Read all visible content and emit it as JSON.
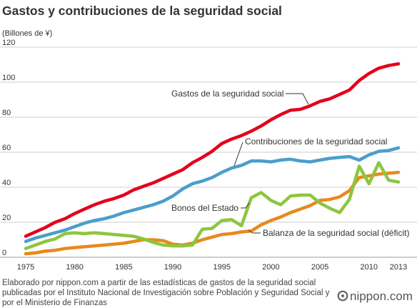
{
  "chart_data": {
    "type": "line",
    "title": "Gastos y contribuciones de la seguridad social",
    "ylabel": "(Billones de ¥)",
    "xlim": [
      1975,
      2013
    ],
    "ylim": [
      0,
      120
    ],
    "xticks": [
      1975,
      1980,
      1985,
      1990,
      1995,
      2000,
      2005,
      2010,
      2013
    ],
    "yticks": [
      0,
      20,
      40,
      60,
      80,
      100,
      120
    ],
    "grid": true,
    "legend": "inline",
    "x": [
      1975,
      1976,
      1977,
      1978,
      1979,
      1980,
      1981,
      1982,
      1983,
      1984,
      1985,
      1986,
      1987,
      1988,
      1989,
      1990,
      1991,
      1992,
      1993,
      1994,
      1995,
      1996,
      1997,
      1998,
      1999,
      2000,
      2001,
      2002,
      2003,
      2004,
      2005,
      2006,
      2007,
      2008,
      2009,
      2010,
      2011,
      2012,
      2013
    ],
    "series": [
      {
        "name": "Gastos de la seguridad social",
        "color": "#e3001b",
        "values": [
          12,
          14.5,
          17,
          20,
          22,
          25,
          27.5,
          30,
          32,
          33.5,
          35.5,
          38.5,
          40.5,
          42.5,
          45,
          47.5,
          50,
          54,
          57,
          60.5,
          65,
          67.5,
          69.5,
          72,
          75,
          78.5,
          81.5,
          84,
          84.5,
          86.5,
          89,
          90.5,
          93,
          95.5,
          101,
          105,
          108,
          109.5,
          110.5
        ]
      },
      {
        "name": "Contribuciones de la seguridad social",
        "color": "#4a9ecb",
        "values": [
          9,
          11,
          12.5,
          14,
          15.5,
          17.5,
          19.5,
          21,
          22,
          23.5,
          25.5,
          27,
          28.5,
          30,
          32,
          35,
          39,
          42,
          43.5,
          45.5,
          48.5,
          51,
          52.5,
          55,
          55,
          54.5,
          55.5,
          56,
          55,
          54.5,
          55.5,
          56.5,
          57,
          57.5,
          55.5,
          58.5,
          60.5,
          61,
          62.5
        ]
      },
      {
        "name": "Bonos del Estado",
        "color": "#8dc63f",
        "values": [
          5,
          7,
          9,
          10.5,
          13.5,
          14,
          13.5,
          14,
          13.5,
          13,
          12.5,
          12,
          10.5,
          8.5,
          7,
          6.5,
          6.5,
          7,
          16,
          16.5,
          21,
          21.5,
          18,
          34,
          37,
          32.5,
          30,
          35,
          35.5,
          35.5,
          31,
          28,
          25.5,
          33,
          52,
          42,
          54,
          44,
          43
        ]
      },
      {
        "name": "Balanza de la seguridad social (déficit)",
        "color": "#e8891e",
        "values": [
          2,
          2.5,
          3.5,
          4,
          5,
          5.5,
          6,
          6.5,
          7,
          7.5,
          8,
          9,
          10,
          10,
          9.5,
          7.5,
          7,
          8,
          10,
          11.5,
          13,
          13.5,
          14.5,
          15,
          18.5,
          21,
          23,
          25.5,
          27.5,
          29.5,
          32.5,
          33,
          34.5,
          38,
          45.5,
          46.5,
          47.5,
          48,
          48.5
        ]
      }
    ]
  },
  "source_note": [
    "Elaborado por nippon.com a partir de las estadísticas de gastos de la seguridad social",
    "publicadas por el Instituto Nacional de Investigación sobre Población y Seguridad Social y",
    "por el Ministerio de Finanzas"
  ],
  "logo": {
    "text": "nippon.com",
    "icon": "nippon-ring-icon"
  }
}
